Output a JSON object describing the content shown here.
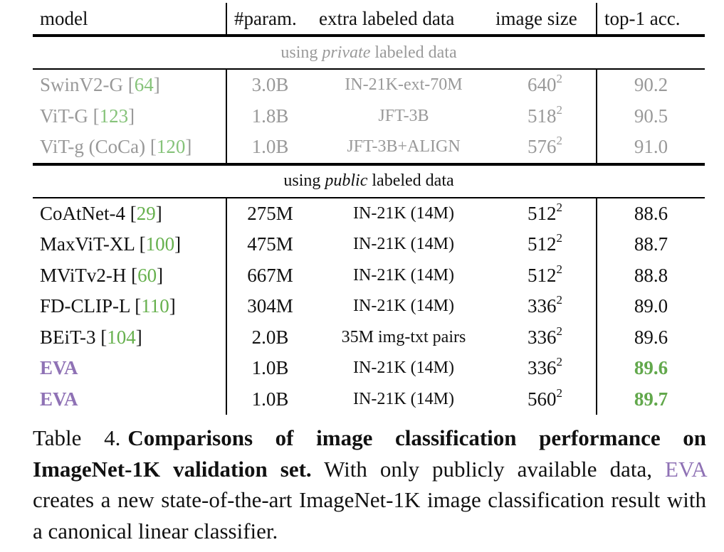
{
  "table": {
    "headers": {
      "model": "model",
      "param": "#param.",
      "extra": "extra labeled data",
      "size": "image size",
      "acc": "top-1 acc."
    },
    "sections": {
      "private": {
        "prefix": "using ",
        "emph": "private",
        "suffix": " labeled data"
      },
      "public": {
        "prefix": "using ",
        "emph": "public",
        "suffix": " labeled data"
      }
    },
    "private_rows": [
      {
        "model": "SwinV2-G",
        "ref": "64",
        "param": "3.0B",
        "extra": "IN-21K-ext-70M",
        "size": "640",
        "exp": "2",
        "acc": "90.2"
      },
      {
        "model": "ViT-G",
        "ref": "123",
        "param": "1.8B",
        "extra": "JFT-3B",
        "size": "518",
        "exp": "2",
        "acc": "90.5"
      },
      {
        "model": "ViT-g (CoCa)",
        "ref": "120",
        "param": "1.0B",
        "extra": "JFT-3B+ALIGN",
        "size": "576",
        "exp": "2",
        "acc": "91.0"
      }
    ],
    "public_rows": [
      {
        "model": "CoAtNet-4",
        "ref": "29",
        "param": "275M",
        "extra": "IN-21K (14M)",
        "size": "512",
        "exp": "2",
        "acc": "88.6"
      },
      {
        "model": "MaxViT-XL",
        "ref": "100",
        "param": "475M",
        "extra": "IN-21K (14M)",
        "size": "512",
        "exp": "2",
        "acc": "88.7"
      },
      {
        "model": "MViTv2-H",
        "ref": "60",
        "param": "667M",
        "extra": "IN-21K (14M)",
        "size": "512",
        "exp": "2",
        "acc": "88.8"
      },
      {
        "model": "FD-CLIP-L",
        "ref": "110",
        "param": "304M",
        "extra": "IN-21K (14M)",
        "size": "336",
        "exp": "2",
        "acc": "89.0"
      },
      {
        "model": "BEiT-3",
        "ref": "104",
        "param": "2.0B",
        "extra": "35M img-txt pairs",
        "size": "336",
        "exp": "2",
        "acc": "89.6"
      }
    ],
    "eva_rows": [
      {
        "model": "EVA",
        "param": "1.0B",
        "extra": "IN-21K (14M)",
        "size": "336",
        "exp": "2",
        "acc": "89.6"
      },
      {
        "model": "EVA",
        "param": "1.0B",
        "extra": "IN-21K (14M)",
        "size": "560",
        "exp": "2",
        "acc": "89.7"
      }
    ]
  },
  "caption": {
    "label": "Table 4.",
    "bold": "Comparisons of image classification performance on ImageNet-1K validation set.",
    "text1": " With only publicly available data, ",
    "eva": "EVA",
    "text2": " creates a new state-of-the-art ImageNet-1K image classification result with a canonical linear classifier."
  },
  "colors": {
    "reference_green": "#66b04d",
    "eva_purple": "#8f72b5",
    "best_green": "#62a84c",
    "private_gray": "#999999"
  }
}
